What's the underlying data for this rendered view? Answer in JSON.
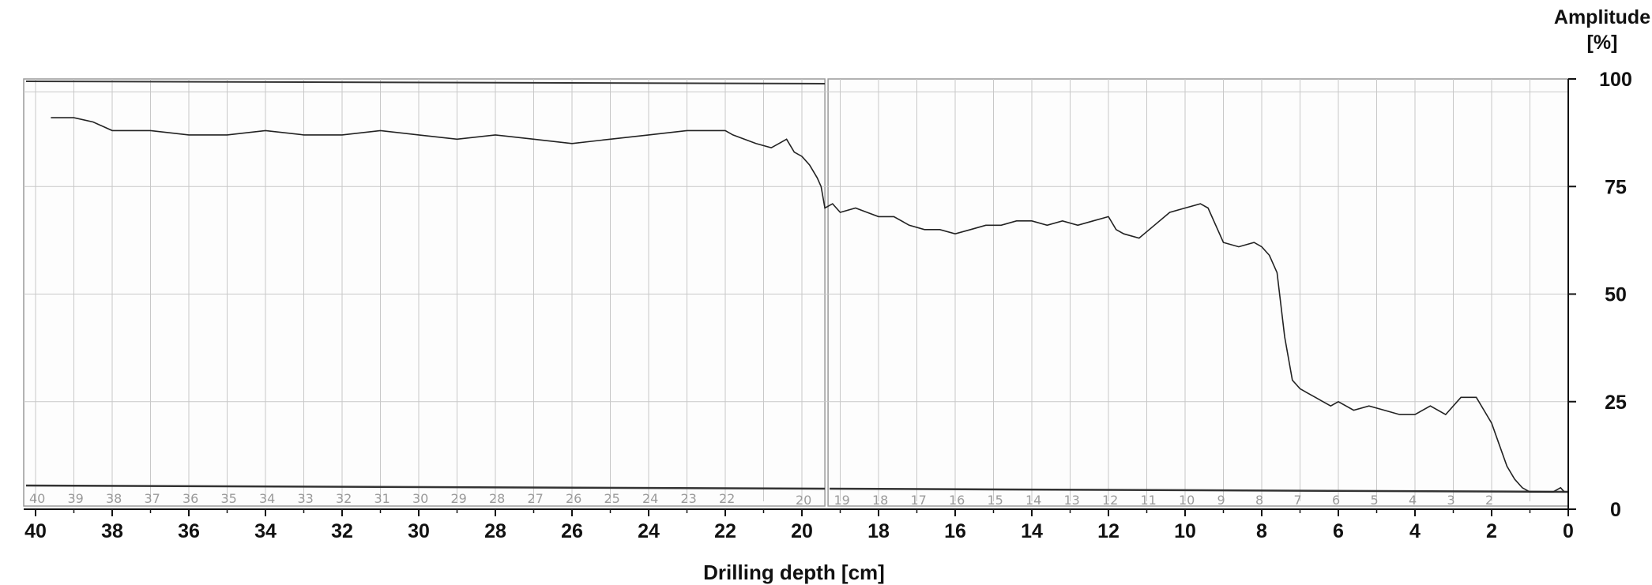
{
  "chart_data": {
    "type": "line",
    "title": "",
    "xlabel": "Drilling depth [cm]",
    "ylabel_line1": "Amplitude",
    "ylabel_line2": "[%]",
    "xlim": [
      40,
      0
    ],
    "ylim": [
      0,
      100
    ],
    "x_ticks": [
      40,
      38,
      36,
      34,
      32,
      30,
      28,
      26,
      24,
      22,
      20,
      18,
      16,
      14,
      12,
      10,
      8,
      6,
      4,
      2,
      0
    ],
    "y_ticks": [
      0,
      25,
      50,
      75,
      100
    ],
    "grid": true,
    "legend": "none",
    "paper_strip_left": [
      "40",
      "39",
      "38",
      "37",
      "36",
      "35",
      "34",
      "33",
      "32",
      "31",
      "30",
      "29",
      "28",
      "27",
      "26",
      "25",
      "24",
      "23",
      "22"
    ],
    "paper_strip_right": [
      "20",
      "19",
      "18",
      "17",
      "16",
      "15",
      "14",
      "13",
      "12",
      "11",
      "10",
      "9",
      "8",
      "7",
      "6",
      "5",
      "4",
      "3",
      "2"
    ],
    "series": [
      {
        "color": "#222222",
        "x": [
          39.6,
          39.0,
          38.5,
          38.0,
          37.0,
          36.0,
          35.0,
          34.0,
          33.0,
          32.0,
          31.0,
          30.0,
          29.0,
          28.0,
          27.0,
          26.0,
          25.0,
          24.0,
          23.0,
          22.5,
          22.0,
          21.8,
          21.2,
          20.8,
          20.6,
          20.4,
          20.2,
          20.0,
          19.8,
          19.6,
          19.5,
          19.4,
          19.2,
          19.0,
          18.6,
          18.3,
          18.0,
          17.6,
          17.2,
          16.8,
          16.4,
          16.0,
          15.6,
          15.2,
          14.8,
          14.4,
          14.0,
          13.6,
          13.2,
          12.8,
          12.4,
          12.0,
          11.8,
          11.6,
          11.2,
          10.8,
          10.4,
          10.0,
          9.6,
          9.4,
          9.2,
          9.0,
          8.6,
          8.2,
          8.0,
          7.8,
          7.6,
          7.4,
          7.2,
          7.0,
          6.8,
          6.6,
          6.4,
          6.2,
          6.0,
          5.6,
          5.2,
          4.8,
          4.4,
          4.0,
          3.6,
          3.2,
          2.8,
          2.4,
          2.2,
          2.0,
          1.8,
          1.6,
          1.4,
          1.2,
          1.0,
          0.8,
          0.6,
          0.4,
          0.2,
          0.1
        ],
        "y": [
          91,
          91,
          90,
          88,
          88,
          87,
          87,
          88,
          87,
          87,
          88,
          87,
          86,
          87,
          86,
          85,
          86,
          87,
          88,
          88,
          88,
          87,
          85,
          84,
          85,
          86,
          83,
          82,
          80,
          77,
          75,
          70,
          71,
          69,
          70,
          69,
          68,
          68,
          66,
          65,
          65,
          64,
          65,
          66,
          66,
          67,
          67,
          66,
          67,
          66,
          67,
          68,
          65,
          64,
          63,
          66,
          69,
          70,
          71,
          70,
          66,
          62,
          61,
          62,
          61,
          59,
          55,
          40,
          30,
          28,
          27,
          26,
          25,
          24,
          25,
          23,
          24,
          23,
          22,
          22,
          24,
          22,
          26,
          26,
          23,
          20,
          15,
          10,
          7,
          5,
          4,
          4,
          4,
          4,
          5,
          4
        ]
      }
    ]
  }
}
